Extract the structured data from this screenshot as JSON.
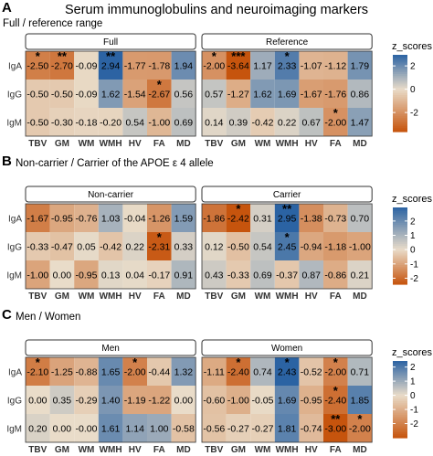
{
  "title": "Serum immunoglobulins and neuroimaging markers",
  "colors": {
    "low": "#c6540d",
    "mid": "#e9dcc9",
    "high": "#2b63a3",
    "strip": "#e6e6e6"
  },
  "chart_data": [
    {
      "type": "heatmap",
      "letter": "A",
      "subtitle": "Full / reference range",
      "x_categories": [
        "TBV",
        "GM",
        "WM",
        "WMH",
        "HV",
        "FA",
        "MD"
      ],
      "y_categories": [
        "IgA",
        "IgG",
        "IgM"
      ],
      "legend": {
        "title": "z_scores",
        "ticks": [
          2,
          0,
          -2
        ],
        "range": [
          -3.64,
          2.95
        ]
      },
      "panels": [
        {
          "name": "Full",
          "values": [
            [
              -2.5,
              -2.7,
              -0.09,
              2.94,
              -1.77,
              -1.78,
              1.94
            ],
            [
              -0.5,
              -0.5,
              -0.09,
              1.62,
              -1.54,
              -2.67,
              0.56
            ],
            [
              -0.5,
              -0.3,
              -0.18,
              -0.2,
              0.54,
              -1.0,
              0.69
            ]
          ],
          "labels": [
            [
              "-2.50",
              "-2.70",
              "-0.09",
              "2.94",
              "-1.77",
              "-1.78",
              "1.94"
            ],
            [
              "-0.50",
              "-0.50",
              "-0.09",
              "1.62",
              "-1.54",
              "-2.67",
              "0.56"
            ],
            [
              "-0.50",
              "-0.30",
              "-0.18",
              "-0.20",
              "0.54",
              "-1.00",
              "0.69"
            ]
          ],
          "stars": [
            [
              "*",
              "**",
              "",
              "**",
              "",
              "",
              ""
            ],
            [
              "",
              "",
              "",
              "",
              "",
              "*",
              ""
            ],
            [
              "",
              "",
              "",
              "",
              "",
              "",
              ""
            ]
          ]
        },
        {
          "name": "Reference",
          "values": [
            [
              -2.0,
              -3.64,
              1.17,
              2.33,
              -1.07,
              -1.12,
              1.79
            ],
            [
              0.57,
              -1.27,
              1.62,
              1.69,
              -1.67,
              -1.76,
              0.86
            ],
            [
              0.14,
              0.39,
              -0.42,
              0.22,
              0.67,
              -2.0,
              1.47
            ]
          ],
          "labels": [
            [
              "-2.00",
              "-3.64",
              "1.17",
              "2.33",
              "-1.07",
              "-1.12",
              "1.79"
            ],
            [
              "0.57",
              "-1.27",
              "1.62",
              "1.69",
              "-1.67",
              "-1.76",
              "0.86"
            ],
            [
              "0.14",
              "0.39",
              "-0.42",
              "0.22",
              "0.67",
              "-2.00",
              "1.47"
            ]
          ],
          "stars": [
            [
              "*",
              "***",
              "",
              "*",
              "",
              "",
              ""
            ],
            [
              "",
              "",
              "",
              "",
              "",
              "",
              ""
            ],
            [
              "",
              "",
              "",
              "",
              "",
              "*",
              ""
            ]
          ]
        }
      ]
    },
    {
      "type": "heatmap",
      "letter": "B",
      "subtitle": "Non-carrier / Carrier of the APOE ε 4 allele",
      "x_categories": [
        "TBV",
        "GM",
        "WM",
        "WMH",
        "HV",
        "FA",
        "MD"
      ],
      "y_categories": [
        "IgA",
        "IgG",
        "IgM"
      ],
      "legend": {
        "title": "z_scores",
        "ticks": [
          2,
          1,
          0,
          -1,
          -2
        ],
        "range": [
          -2.42,
          2.95
        ]
      },
      "panels": [
        {
          "name": "Non-carrier",
          "values": [
            [
              -1.67,
              -0.95,
              -0.76,
              1.03,
              -0.04,
              -1.26,
              1.59
            ],
            [
              -0.33,
              -0.47,
              0.05,
              -0.42,
              0.22,
              -2.31,
              0.33
            ],
            [
              -1.0,
              0.0,
              -0.95,
              0.13,
              0.04,
              -0.17,
              0.91
            ]
          ],
          "labels": [
            [
              "-1.67",
              "-0.95",
              "-0.76",
              "1.03",
              "-0.04",
              "-1.26",
              "1.59"
            ],
            [
              "-0.33",
              "-0.47",
              "0.05",
              "-0.42",
              "0.22",
              "-2.31",
              "0.33"
            ],
            [
              "-1.00",
              "0.00",
              "-0.95",
              "0.13",
              "0.04",
              "-0.17",
              "0.91"
            ]
          ],
          "stars": [
            [
              "",
              "",
              "",
              "",
              "",
              "",
              ""
            ],
            [
              "",
              "",
              "",
              "",
              "",
              "*",
              ""
            ],
            [
              "",
              "",
              "",
              "",
              "",
              "",
              ""
            ]
          ]
        },
        {
          "name": "Carrier",
          "values": [
            [
              -1.86,
              -2.42,
              0.31,
              2.95,
              -1.38,
              -0.73,
              0.7
            ],
            [
              0.12,
              -0.5,
              0.54,
              2.45,
              -0.94,
              -1.18,
              -1.0
            ],
            [
              0.43,
              -0.33,
              0.69,
              -0.37,
              0.87,
              -0.86,
              0.21
            ]
          ],
          "labels": [
            [
              "-1.86",
              "-2.42",
              "0.31",
              "2.95",
              "-1.38",
              "-0.73",
              "0.70"
            ],
            [
              "0.12",
              "-0.50",
              "0.54",
              "2.45",
              "-0.94",
              "-1.18",
              "-1.00"
            ],
            [
              "0.43",
              "-0.33",
              "0.69",
              "-0.37",
              "0.87",
              "-0.86",
              "0.21"
            ]
          ],
          "stars": [
            [
              "",
              "*",
              "",
              "**",
              "",
              "",
              ""
            ],
            [
              "",
              "",
              "",
              "*",
              "",
              "",
              ""
            ],
            [
              "",
              "",
              "",
              "",
              "",
              "",
              ""
            ]
          ]
        }
      ]
    },
    {
      "type": "heatmap",
      "letter": "C",
      "subtitle": "Men / Women",
      "x_categories": [
        "TBV",
        "GM",
        "WM",
        "WMH",
        "HV",
        "FA",
        "MD"
      ],
      "y_categories": [
        "IgA",
        "IgG",
        "IgM"
      ],
      "legend": {
        "title": "z_scores",
        "ticks": [
          2,
          1,
          0,
          -1,
          -2
        ],
        "range": [
          -3.0,
          2.43
        ]
      },
      "panels": [
        {
          "name": "Men",
          "values": [
            [
              -2.1,
              -1.25,
              -0.88,
              1.65,
              -2.0,
              -0.44,
              1.32
            ],
            [
              0.0,
              0.35,
              -0.29,
              1.4,
              -1.19,
              -1.22,
              0.0
            ],
            [
              0.2,
              0.0,
              -0.0,
              1.61,
              1.14,
              1.0,
              -0.58
            ]
          ],
          "labels": [
            [
              "-2.10",
              "-1.25",
              "-0.88",
              "1.65",
              "-2.00",
              "-0.44",
              "1.32"
            ],
            [
              "0.00",
              "0.35",
              "-0.29",
              "1.40",
              "-1.19",
              "-1.22",
              "0.00"
            ],
            [
              "0.20",
              "0.00",
              "-0.00",
              "1.61",
              "1.14",
              "1.00",
              "-0.58"
            ]
          ],
          "stars": [
            [
              "*",
              "",
              "",
              "",
              "*",
              "",
              ""
            ],
            [
              "",
              "",
              "",
              "",
              "",
              "",
              ""
            ],
            [
              "",
              "",
              "",
              "",
              "",
              "",
              ""
            ]
          ]
        },
        {
          "name": "Women",
          "values": [
            [
              -1.11,
              -2.4,
              0.74,
              2.43,
              -0.52,
              -2.0,
              0.71
            ],
            [
              -0.6,
              -1.0,
              -0.05,
              1.69,
              -0.95,
              -2.4,
              1.85
            ],
            [
              -0.56,
              -0.27,
              -0.27,
              1.81,
              -0.74,
              -3.0,
              -2.0
            ]
          ],
          "labels": [
            [
              "-1.11",
              "-2.40",
              "0.74",
              "2.43",
              "-0.52",
              "-2.00",
              "0.71"
            ],
            [
              "-0.60",
              "-1.00",
              "-0.05",
              "1.69",
              "-0.95",
              "-2.40",
              "1.85"
            ],
            [
              "-0.56",
              "-0.27",
              "-0.27",
              "1.81",
              "-0.74",
              "-3.00",
              "-2.00"
            ]
          ],
          "stars": [
            [
              "",
              "*",
              "",
              "*",
              "",
              "*",
              ""
            ],
            [
              "",
              "",
              "",
              "",
              "",
              "*",
              ""
            ],
            [
              "",
              "",
              "",
              "",
              "",
              "**",
              "*"
            ]
          ]
        }
      ]
    }
  ]
}
